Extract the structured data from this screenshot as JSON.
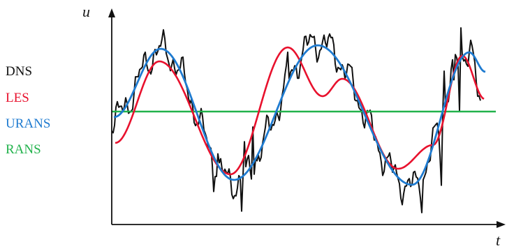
{
  "axes": {
    "y_label": "u",
    "x_label": "t"
  },
  "legend": [
    {
      "label": "DNS",
      "color": "#111111"
    },
    {
      "label": "LES",
      "color": "#e8112d"
    },
    {
      "label": "URANS",
      "color": "#1f7bd0"
    },
    {
      "label": "RANS",
      "color": "#22b24c"
    }
  ],
  "colors": {
    "axis": "#111111",
    "dns": "#111111",
    "les": "#e8112d",
    "urans": "#1f7bd0",
    "rans": "#22b24c"
  }
}
